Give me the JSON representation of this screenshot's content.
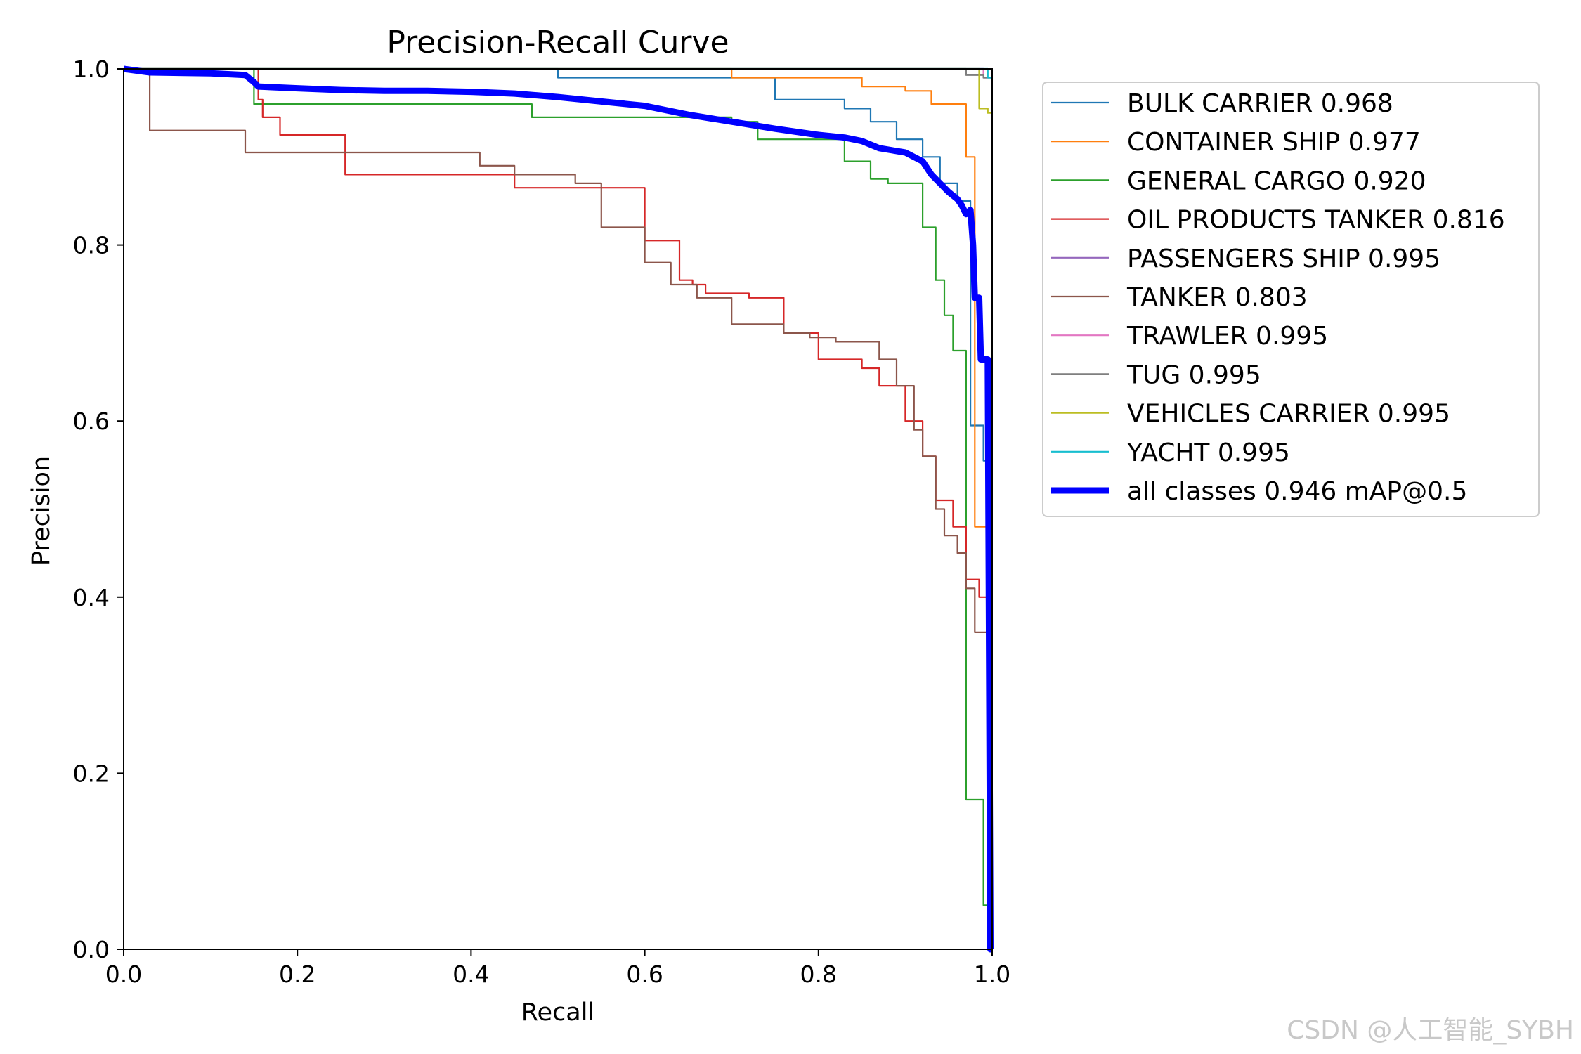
{
  "chart_data": {
    "type": "line",
    "title": "Precision-Recall Curve",
    "xlabel": "Recall",
    "ylabel": "Precision",
    "xlim": [
      0,
      1
    ],
    "ylim": [
      0,
      1
    ],
    "xticks": [
      "0.0",
      "0.2",
      "0.4",
      "0.6",
      "0.8",
      "1.0"
    ],
    "yticks": [
      "0.0",
      "0.2",
      "0.4",
      "0.6",
      "0.8",
      "1.0"
    ],
    "legend_position": "outside-right-top",
    "series": [
      {
        "name": "BULK CARRIER 0.968",
        "color": "#1f77b4",
        "x": [
          0,
          0.5,
          0.5,
          0.75,
          0.75,
          0.83,
          0.83,
          0.86,
          0.86,
          0.89,
          0.89,
          0.92,
          0.92,
          0.94,
          0.94,
          0.96,
          0.96,
          0.975,
          0.975,
          0.99,
          0.99,
          1.0
        ],
        "y": [
          1.0,
          1.0,
          0.99,
          0.99,
          0.965,
          0.965,
          0.955,
          0.955,
          0.94,
          0.94,
          0.92,
          0.92,
          0.9,
          0.9,
          0.87,
          0.87,
          0.85,
          0.85,
          0.595,
          0.595,
          0.555,
          0.555
        ]
      },
      {
        "name": "CONTAINER SHIP 0.977",
        "color": "#ff7f0e",
        "x": [
          0,
          0.7,
          0.7,
          0.85,
          0.85,
          0.9,
          0.9,
          0.93,
          0.93,
          0.97,
          0.97,
          0.98,
          0.98,
          1.0
        ],
        "y": [
          1.0,
          1.0,
          0.99,
          0.99,
          0.98,
          0.98,
          0.975,
          0.975,
          0.96,
          0.96,
          0.9,
          0.9,
          0.48,
          0.48
        ]
      },
      {
        "name": "GENERAL CARGO 0.920",
        "color": "#2ca02c",
        "x": [
          0,
          0.15,
          0.15,
          0.47,
          0.47,
          0.7,
          0.7,
          0.73,
          0.73,
          0.83,
          0.83,
          0.86,
          0.86,
          0.88,
          0.88,
          0.92,
          0.92,
          0.935,
          0.935,
          0.945,
          0.945,
          0.955,
          0.955,
          0.97,
          0.97,
          0.99,
          0.99,
          1.0
        ],
        "y": [
          1.0,
          1.0,
          0.96,
          0.96,
          0.945,
          0.945,
          0.94,
          0.94,
          0.92,
          0.92,
          0.895,
          0.895,
          0.875,
          0.875,
          0.87,
          0.87,
          0.82,
          0.82,
          0.76,
          0.76,
          0.72,
          0.72,
          0.68,
          0.68,
          0.17,
          0.17,
          0.05,
          0.05
        ]
      },
      {
        "name": "OIL PRODUCTS TANKER 0.816",
        "color": "#d62728",
        "x": [
          0,
          0.155,
          0.155,
          0.16,
          0.16,
          0.18,
          0.18,
          0.255,
          0.255,
          0.45,
          0.45,
          0.6,
          0.6,
          0.64,
          0.64,
          0.655,
          0.655,
          0.67,
          0.67,
          0.72,
          0.72,
          0.76,
          0.76,
          0.8,
          0.8,
          0.85,
          0.85,
          0.87,
          0.87,
          0.9,
          0.9,
          0.92,
          0.92,
          0.935,
          0.935,
          0.955,
          0.955,
          0.97,
          0.97,
          0.985,
          0.985,
          1.0
        ],
        "y": [
          1.0,
          1.0,
          0.965,
          0.965,
          0.945,
          0.945,
          0.925,
          0.925,
          0.88,
          0.88,
          0.865,
          0.865,
          0.805,
          0.805,
          0.76,
          0.76,
          0.755,
          0.755,
          0.745,
          0.745,
          0.74,
          0.74,
          0.7,
          0.7,
          0.67,
          0.67,
          0.66,
          0.66,
          0.64,
          0.64,
          0.6,
          0.6,
          0.56,
          0.56,
          0.51,
          0.51,
          0.48,
          0.48,
          0.42,
          0.42,
          0.4,
          0.4
        ]
      },
      {
        "name": "PASSENGERS SHIP 0.995",
        "color": "#9467bd",
        "x": [
          0,
          0.99,
          0.99,
          1.0
        ],
        "y": [
          1.0,
          1.0,
          0.99,
          0.99
        ]
      },
      {
        "name": "TANKER 0.803",
        "color": "#8c564b",
        "x": [
          0,
          0.03,
          0.03,
          0.14,
          0.14,
          0.25,
          0.25,
          0.41,
          0.41,
          0.45,
          0.45,
          0.52,
          0.52,
          0.55,
          0.55,
          0.59,
          0.59,
          0.6,
          0.6,
          0.63,
          0.63,
          0.66,
          0.66,
          0.7,
          0.7,
          0.76,
          0.76,
          0.79,
          0.79,
          0.82,
          0.82,
          0.87,
          0.87,
          0.89,
          0.89,
          0.91,
          0.91,
          0.92,
          0.92,
          0.935,
          0.935,
          0.945,
          0.945,
          0.96,
          0.96,
          0.97,
          0.97,
          0.98,
          0.98,
          0.99,
          0.99,
          1.0
        ],
        "y": [
          1.0,
          1.0,
          0.93,
          0.93,
          0.905,
          0.905,
          0.905,
          0.905,
          0.89,
          0.89,
          0.88,
          0.88,
          0.87,
          0.87,
          0.82,
          0.82,
          0.82,
          0.82,
          0.78,
          0.78,
          0.755,
          0.755,
          0.74,
          0.74,
          0.71,
          0.71,
          0.7,
          0.7,
          0.695,
          0.695,
          0.69,
          0.69,
          0.67,
          0.67,
          0.64,
          0.64,
          0.59,
          0.59,
          0.56,
          0.56,
          0.5,
          0.5,
          0.47,
          0.47,
          0.45,
          0.45,
          0.41,
          0.41,
          0.36,
          0.36,
          0.36,
          0.36
        ]
      },
      {
        "name": "TRAWLER 0.995",
        "color": "#e377c2",
        "x": [
          0,
          0.99,
          0.99,
          1.0
        ],
        "y": [
          1.0,
          1.0,
          0.99,
          0.99
        ]
      },
      {
        "name": "TUG 0.995",
        "color": "#7f7f7f",
        "x": [
          0,
          0.97,
          0.97,
          0.99,
          0.99,
          1.0
        ],
        "y": [
          1.0,
          1.0,
          0.993,
          0.993,
          0.99,
          0.99
        ]
      },
      {
        "name": "VEHICLES CARRIER 0.995",
        "color": "#bcbd22",
        "x": [
          0,
          0.985,
          0.985,
          0.995,
          0.995,
          1.0
        ],
        "y": [
          1.0,
          1.0,
          0.955,
          0.955,
          0.95,
          0.95
        ]
      },
      {
        "name": "YACHT 0.995",
        "color": "#17becf",
        "x": [
          0,
          0.995,
          0.995,
          1.0
        ],
        "y": [
          1.0,
          1.0,
          0.99,
          0.99
        ]
      },
      {
        "name": "all classes 0.946 mAP@0.5",
        "color": "#0000ff",
        "bold": true,
        "x": [
          0,
          0.03,
          0.1,
          0.14,
          0.15,
          0.155,
          0.2,
          0.25,
          0.3,
          0.35,
          0.4,
          0.45,
          0.5,
          0.55,
          0.6,
          0.65,
          0.7,
          0.75,
          0.8,
          0.83,
          0.85,
          0.87,
          0.9,
          0.92,
          0.93,
          0.94,
          0.95,
          0.96,
          0.965,
          0.97,
          0.975,
          0.978,
          0.98,
          0.985,
          0.987,
          0.99,
          0.995,
          0.998,
          1.0
        ],
        "y": [
          1.0,
          0.996,
          0.995,
          0.993,
          0.985,
          0.98,
          0.978,
          0.976,
          0.975,
          0.975,
          0.974,
          0.972,
          0.968,
          0.963,
          0.958,
          0.948,
          0.94,
          0.932,
          0.925,
          0.922,
          0.918,
          0.91,
          0.905,
          0.895,
          0.88,
          0.87,
          0.86,
          0.852,
          0.845,
          0.835,
          0.84,
          0.8,
          0.74,
          0.74,
          0.67,
          0.67,
          0.67,
          0.0,
          0.0
        ]
      }
    ]
  },
  "watermark": "CSDN @人工智能_SYBH"
}
